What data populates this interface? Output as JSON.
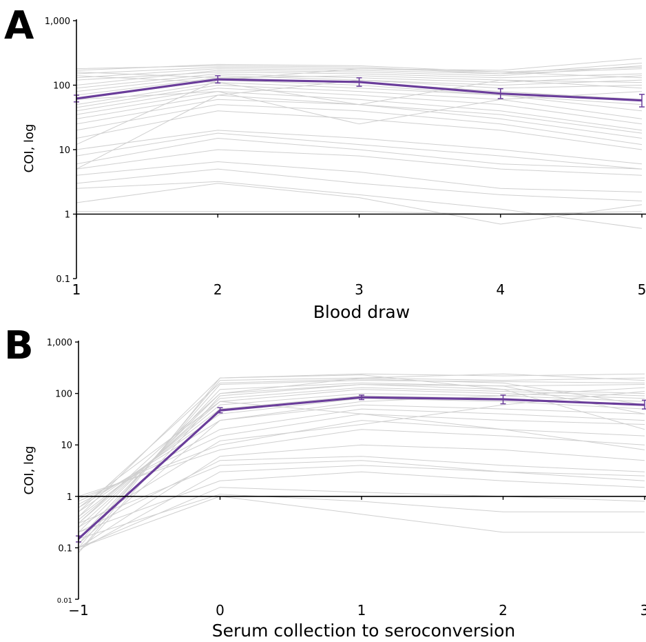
{
  "chart_data": [
    {
      "panel": "A",
      "type": "line",
      "xlabel": "Blood draw",
      "ylabel": "COI, log",
      "x": [
        1,
        2,
        3,
        4,
        5
      ],
      "x_tick_labels": [
        "1",
        "2",
        "3",
        "4",
        "5"
      ],
      "y_tick_labels": [
        "0.1",
        "1",
        "10",
        "100",
        "1,000"
      ],
      "y_ticks": [
        0.1,
        1,
        10,
        100,
        1000
      ],
      "yscale": "log",
      "ylim": [
        0.1,
        1000
      ],
      "xlim": [
        1,
        5
      ],
      "grid": false,
      "reference_line_y": 1,
      "individual_color": "#cfcfcf",
      "mean_color": "#6a3d9a",
      "mean_series": {
        "values": [
          62,
          123,
          112,
          74,
          58
        ],
        "error_low": [
          55,
          108,
          96,
          62,
          46
        ],
        "error_high": [
          70,
          140,
          130,
          88,
          72
        ]
      },
      "individual_series": [
        [
          180,
          200,
          190,
          150,
          220
        ],
        [
          170,
          210,
          200,
          160,
          190
        ],
        [
          150,
          190,
          180,
          170,
          260
        ],
        [
          130,
          180,
          170,
          150,
          180
        ],
        [
          120,
          160,
          150,
          130,
          150
        ],
        [
          100,
          170,
          160,
          140,
          200
        ],
        [
          90,
          150,
          130,
          110,
          140
        ],
        [
          80,
          140,
          120,
          90,
          100
        ],
        [
          70,
          130,
          110,
          80,
          60
        ],
        [
          60,
          120,
          100,
          70,
          50
        ],
        [
          50,
          110,
          90,
          70,
          40
        ],
        [
          45,
          100,
          80,
          60,
          30
        ],
        [
          40,
          90,
          70,
          50,
          25
        ],
        [
          35,
          80,
          60,
          40,
          20
        ],
        [
          30,
          70,
          50,
          35,
          18
        ],
        [
          25,
          60,
          50,
          30,
          15
        ],
        [
          20,
          50,
          40,
          25,
          12
        ],
        [
          15,
          40,
          30,
          20,
          10
        ],
        [
          10,
          20,
          15,
          10,
          6
        ],
        [
          8,
          18,
          12,
          8,
          5
        ],
        [
          6,
          15,
          10,
          6,
          5
        ],
        [
          5,
          10,
          8,
          5,
          4
        ],
        [
          4,
          6.5,
          4.5,
          2.5,
          2.2
        ],
        [
          3,
          5,
          3,
          2,
          1.6
        ],
        [
          2.5,
          3.2,
          2,
          1.2,
          0.6
        ],
        [
          1.5,
          3,
          1.8,
          0.7,
          1.4
        ],
        [
          1.1,
          1.1,
          1.1,
          1,
          1.1
        ],
        [
          160,
          130,
          140,
          120,
          110
        ],
        [
          140,
          110,
          50,
          120,
          90
        ],
        [
          60,
          80,
          25,
          60,
          80
        ],
        [
          5,
          70,
          120,
          100,
          120
        ],
        [
          12,
          120,
          180,
          160,
          130
        ]
      ]
    },
    {
      "panel": "B",
      "type": "line",
      "xlabel": "Serum collection to seroconversion",
      "ylabel": "COI, log",
      "x": [
        -1,
        0,
        1,
        2,
        3
      ],
      "x_tick_labels": [
        "−1",
        "0",
        "1",
        "2",
        "3"
      ],
      "y_tick_labels": [
        "0.01",
        "0.1",
        "1",
        "10",
        "100",
        "1,000"
      ],
      "y_ticks": [
        0.01,
        0.1,
        1,
        10,
        100,
        1000
      ],
      "yscale": "log",
      "ylim": [
        0.01,
        1000
      ],
      "xlim": [
        -1,
        3
      ],
      "grid": false,
      "reference_line_y": 1,
      "individual_color": "#cfcfcf",
      "mean_color": "#6a3d9a",
      "mean_series": {
        "values": [
          0.15,
          47,
          84,
          77,
          60
        ],
        "error_low": [
          0.13,
          42,
          76,
          63,
          50
        ],
        "error_high": [
          0.17,
          53,
          93,
          93,
          74
        ]
      },
      "individual_series": [
        [
          0.08,
          200,
          240,
          220,
          240
        ],
        [
          0.1,
          180,
          200,
          180,
          200
        ],
        [
          0.12,
          150,
          180,
          170,
          160
        ],
        [
          0.15,
          120,
          160,
          140,
          150
        ],
        [
          0.2,
          100,
          150,
          120,
          100
        ],
        [
          0.25,
          80,
          130,
          110,
          90
        ],
        [
          0.3,
          70,
          120,
          100,
          80
        ],
        [
          0.35,
          60,
          100,
          90,
          70
        ],
        [
          0.4,
          50,
          90,
          80,
          60
        ],
        [
          0.5,
          40,
          80,
          70,
          50
        ],
        [
          0.6,
          30,
          60,
          50,
          40
        ],
        [
          0.7,
          20,
          50,
          40,
          30
        ],
        [
          0.8,
          15,
          40,
          30,
          25
        ],
        [
          0.9,
          10,
          30,
          20,
          15
        ],
        [
          1,
          8,
          20,
          15,
          10
        ],
        [
          0.1,
          6,
          10,
          8,
          5
        ],
        [
          0.2,
          5,
          6,
          4,
          3
        ],
        [
          0.3,
          4,
          5,
          3,
          2
        ],
        [
          0.09,
          3,
          4,
          3,
          2.5
        ],
        [
          0.2,
          2,
          3,
          2,
          1.5
        ],
        [
          0.1,
          1.5,
          1.2,
          1,
          0.8
        ],
        [
          0.15,
          1.1,
          0.8,
          0.5,
          0.5
        ],
        [
          0.1,
          1,
          0.45,
          0.2,
          0.2
        ],
        [
          0.3,
          100,
          200,
          240,
          180
        ],
        [
          0.5,
          160,
          190,
          160,
          60
        ],
        [
          0.12,
          30,
          70,
          90,
          130
        ],
        [
          0.25,
          12,
          25,
          60,
          110
        ],
        [
          0.08,
          90,
          150,
          140,
          40
        ],
        [
          0.4,
          200,
          230,
          120,
          20
        ],
        [
          0.6,
          70,
          40,
          20,
          8
        ]
      ]
    }
  ],
  "panels": {
    "a": {
      "letter": "A"
    },
    "b": {
      "letter": "B"
    }
  }
}
